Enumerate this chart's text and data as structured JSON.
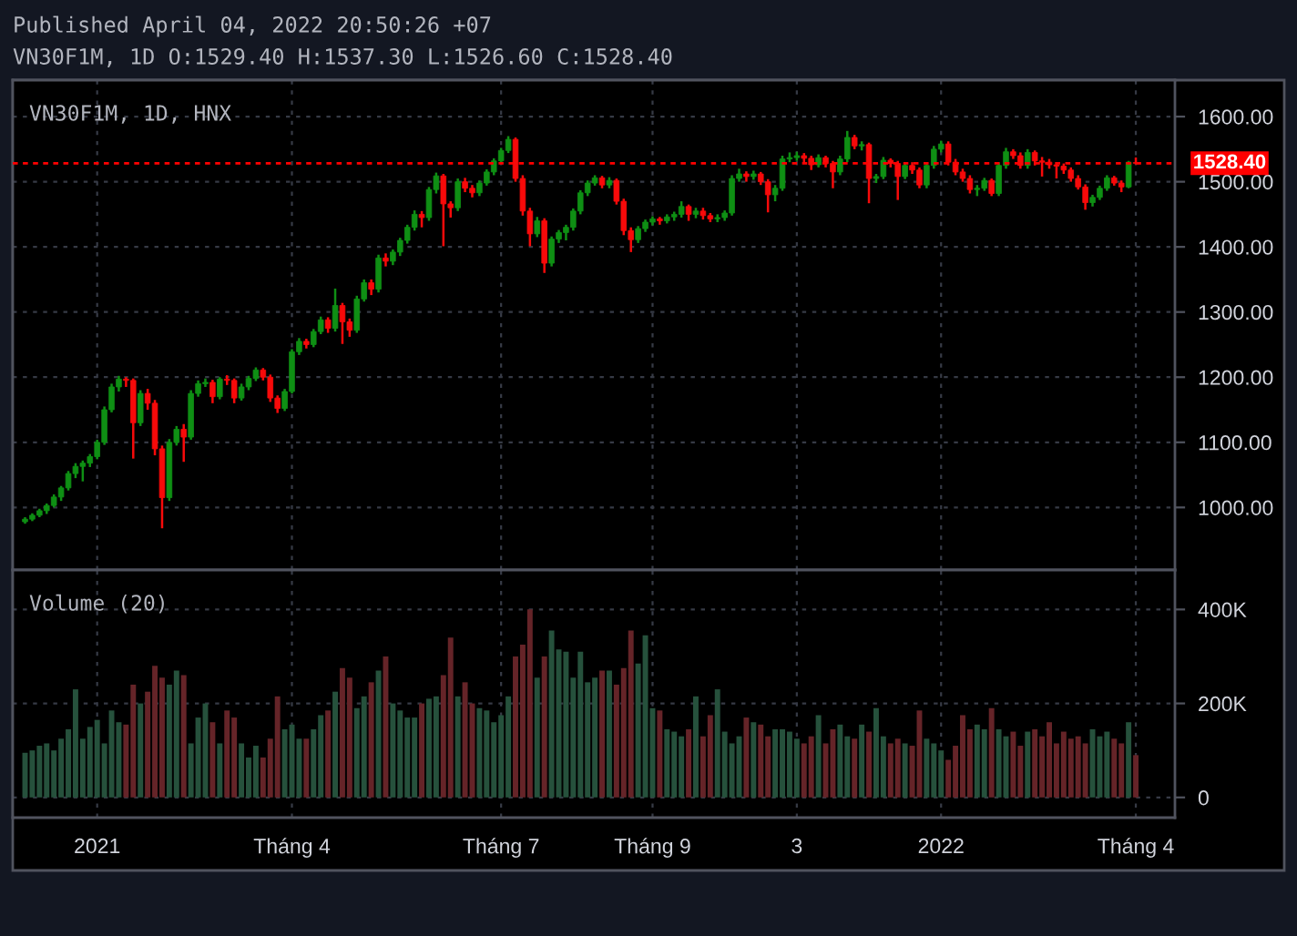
{
  "chart_data": [
    {
      "type": "candlestick",
      "title": "VN30F1M, 1D, HNX",
      "annotations": [
        "Published April 04, 2022 20:50:26 +07",
        "VN30F1M, 1D O:1529.40 H:1537.30 L:1526.60 C:1528.40"
      ],
      "categories": [
        null,
        null,
        null,
        null,
        null,
        null,
        null,
        null,
        null,
        null,
        null,
        null,
        null,
        null,
        null,
        null,
        null,
        null,
        null,
        null,
        null,
        null,
        null,
        null,
        null,
        null,
        null,
        null,
        null,
        null,
        null,
        null,
        null,
        null,
        null,
        null,
        null,
        null,
        null,
        null,
        null,
        null,
        null,
        null,
        null,
        null,
        null,
        null,
        null,
        null,
        null,
        null,
        null,
        null,
        null,
        null,
        null,
        null,
        null,
        null,
        null,
        null,
        null,
        null,
        null,
        null,
        null,
        null,
        null,
        null,
        null,
        null,
        null,
        null,
        null,
        null,
        null,
        null,
        null,
        null,
        null,
        null,
        null,
        null,
        null,
        null,
        null,
        null,
        null,
        null,
        null,
        null,
        null,
        null,
        null,
        null,
        null,
        null,
        null,
        null,
        null,
        null,
        null,
        null,
        null,
        null,
        null,
        null,
        null,
        null,
        null,
        null,
        null,
        null,
        null,
        null,
        null,
        null,
        null,
        null,
        null,
        null,
        null,
        null,
        null,
        null,
        null,
        null,
        null,
        null,
        null,
        null,
        null,
        null,
        null,
        null,
        null,
        null,
        null,
        null,
        null,
        null,
        null,
        null,
        null,
        null,
        null,
        null,
        null,
        null,
        null,
        null,
        null,
        null,
        null
      ],
      "ohlc": [
        [
          978,
          985,
          975,
          982
        ],
        [
          982,
          991,
          979,
          988
        ],
        [
          988,
          998,
          985,
          995
        ],
        [
          995,
          1006,
          990,
          1003
        ],
        [
          1003,
          1020,
          1000,
          1016
        ],
        [
          1016,
          1033,
          1010,
          1030
        ],
        [
          1030,
          1056,
          1026,
          1052
        ],
        [
          1052,
          1068,
          1045,
          1063
        ],
        [
          1063,
          1072,
          1040,
          1068
        ],
        [
          1068,
          1082,
          1062,
          1078
        ],
        [
          1078,
          1104,
          1074,
          1100
        ],
        [
          1100,
          1155,
          1096,
          1150
        ],
        [
          1150,
          1190,
          1146,
          1185
        ],
        [
          1185,
          1202,
          1178,
          1197
        ],
        [
          1197,
          1200,
          1185,
          1195
        ],
        [
          1195,
          1198,
          1075,
          1130
        ],
        [
          1130,
          1180,
          1125,
          1175
        ],
        [
          1175,
          1182,
          1150,
          1160
        ],
        [
          1160,
          1165,
          1080,
          1090
        ],
        [
          1090,
          1095,
          968,
          1015
        ],
        [
          1015,
          1105,
          1010,
          1100
        ],
        [
          1100,
          1125,
          1095,
          1120
        ],
        [
          1120,
          1128,
          1070,
          1108
        ],
        [
          1108,
          1180,
          1104,
          1175
        ],
        [
          1175,
          1195,
          1170,
          1190
        ],
        [
          1190,
          1198,
          1185,
          1192
        ],
        [
          1192,
          1196,
          1160,
          1170
        ],
        [
          1170,
          1200,
          1166,
          1197
        ],
        [
          1197,
          1203,
          1188,
          1195
        ],
        [
          1195,
          1198,
          1160,
          1168
        ],
        [
          1168,
          1190,
          1164,
          1185
        ],
        [
          1185,
          1202,
          1180,
          1198
        ],
        [
          1198,
          1215,
          1194,
          1211
        ],
        [
          1211,
          1214,
          1195,
          1200
        ],
        [
          1200,
          1204,
          1162,
          1168
        ],
        [
          1168,
          1172,
          1145,
          1152
        ],
        [
          1152,
          1182,
          1148,
          1178
        ],
        [
          1178,
          1243,
          1175,
          1239
        ],
        [
          1239,
          1260,
          1234,
          1255
        ],
        [
          1255,
          1259,
          1244,
          1250
        ],
        [
          1250,
          1274,
          1246,
          1270
        ],
        [
          1270,
          1293,
          1266,
          1288
        ],
        [
          1288,
          1292,
          1268,
          1275
        ],
        [
          1275,
          1336,
          1270,
          1310
        ],
        [
          1310,
          1314,
          1251,
          1285
        ],
        [
          1285,
          1290,
          1262,
          1272
        ],
        [
          1272,
          1325,
          1268,
          1320
        ],
        [
          1320,
          1350,
          1316,
          1345
        ],
        [
          1345,
          1350,
          1326,
          1335
        ],
        [
          1335,
          1388,
          1330,
          1383
        ],
        [
          1383,
          1390,
          1370,
          1378
        ],
        [
          1378,
          1396,
          1372,
          1392
        ],
        [
          1392,
          1414,
          1386,
          1410
        ],
        [
          1410,
          1434,
          1405,
          1430
        ],
        [
          1430,
          1456,
          1425,
          1450
        ],
        [
          1450,
          1455,
          1430,
          1445
        ],
        [
          1445,
          1492,
          1440,
          1488
        ],
        [
          1488,
          1514,
          1482,
          1509
        ],
        [
          1509,
          1512,
          1401,
          1466
        ],
        [
          1466,
          1470,
          1445,
          1460
        ],
        [
          1460,
          1505,
          1455,
          1500
        ],
        [
          1500,
          1506,
          1484,
          1490
        ],
        [
          1490,
          1495,
          1476,
          1483
        ],
        [
          1483,
          1502,
          1478,
          1498
        ],
        [
          1498,
          1519,
          1494,
          1515
        ],
        [
          1515,
          1536,
          1510,
          1532
        ],
        [
          1532,
          1552,
          1528,
          1548
        ],
        [
          1548,
          1570,
          1544,
          1565
        ],
        [
          1565,
          1568,
          1500,
          1505
        ],
        [
          1505,
          1510,
          1448,
          1455
        ],
        [
          1455,
          1460,
          1401,
          1420
        ],
        [
          1420,
          1446,
          1415,
          1440
        ],
        [
          1440,
          1444,
          1360,
          1375
        ],
        [
          1375,
          1416,
          1370,
          1412
        ],
        [
          1412,
          1426,
          1406,
          1422
        ],
        [
          1422,
          1434,
          1410,
          1430
        ],
        [
          1430,
          1459,
          1425,
          1455
        ],
        [
          1455,
          1487,
          1450,
          1483
        ],
        [
          1483,
          1502,
          1478,
          1498
        ],
        [
          1498,
          1510,
          1494,
          1506
        ],
        [
          1506,
          1509,
          1490,
          1495
        ],
        [
          1495,
          1507,
          1490,
          1502
        ],
        [
          1502,
          1505,
          1465,
          1470
        ],
        [
          1470,
          1474,
          1418,
          1425
        ],
        [
          1425,
          1430,
          1392,
          1411
        ],
        [
          1411,
          1432,
          1406,
          1428
        ],
        [
          1428,
          1442,
          1423,
          1438
        ],
        [
          1438,
          1447,
          1433,
          1443
        ],
        [
          1443,
          1446,
          1434,
          1440
        ],
        [
          1440,
          1450,
          1436,
          1446
        ],
        [
          1446,
          1454,
          1440,
          1450
        ],
        [
          1450,
          1470,
          1445,
          1462
        ],
        [
          1462,
          1465,
          1440,
          1450
        ],
        [
          1450,
          1460,
          1444,
          1455
        ],
        [
          1455,
          1460,
          1442,
          1448
        ],
        [
          1448,
          1452,
          1438,
          1443
        ],
        [
          1443,
          1450,
          1438,
          1445
        ],
        [
          1445,
          1456,
          1440,
          1452
        ],
        [
          1452,
          1510,
          1448,
          1505
        ],
        [
          1505,
          1520,
          1500,
          1512
        ],
        [
          1512,
          1516,
          1500,
          1508
        ],
        [
          1508,
          1517,
          1503,
          1512
        ],
        [
          1512,
          1515,
          1495,
          1500
        ],
        [
          1500,
          1504,
          1453,
          1480
        ],
        [
          1480,
          1495,
          1470,
          1490
        ],
        [
          1490,
          1540,
          1486,
          1535
        ],
        [
          1535,
          1545,
          1530,
          1537
        ],
        [
          1537,
          1546,
          1532,
          1540
        ],
        [
          1540,
          1544,
          1530,
          1536
        ],
        [
          1536,
          1540,
          1518,
          1526
        ],
        [
          1526,
          1542,
          1522,
          1537
        ],
        [
          1537,
          1540,
          1522,
          1528
        ],
        [
          1528,
          1532,
          1490,
          1515
        ],
        [
          1515,
          1540,
          1510,
          1535
        ],
        [
          1535,
          1578,
          1530,
          1568
        ],
        [
          1568,
          1572,
          1550,
          1555
        ],
        [
          1555,
          1562,
          1548,
          1557
        ],
        [
          1557,
          1560,
          1467,
          1505
        ],
        [
          1505,
          1512,
          1498,
          1508
        ],
        [
          1508,
          1538,
          1504,
          1533
        ],
        [
          1533,
          1536,
          1522,
          1528
        ],
        [
          1528,
          1532,
          1472,
          1508
        ],
        [
          1508,
          1530,
          1504,
          1525
        ],
        [
          1525,
          1530,
          1512,
          1518
        ],
        [
          1518,
          1522,
          1490,
          1495
        ],
        [
          1495,
          1530,
          1490,
          1525
        ],
        [
          1525,
          1555,
          1520,
          1550
        ],
        [
          1550,
          1563,
          1545,
          1558
        ],
        [
          1558,
          1562,
          1525,
          1530
        ],
        [
          1530,
          1535,
          1510,
          1515
        ],
        [
          1515,
          1520,
          1500,
          1505
        ],
        [
          1505,
          1510,
          1482,
          1488
        ],
        [
          1488,
          1495,
          1478,
          1490
        ],
        [
          1490,
          1506,
          1486,
          1502
        ],
        [
          1502,
          1505,
          1478,
          1482
        ],
        [
          1482,
          1530,
          1478,
          1525
        ],
        [
          1525,
          1552,
          1520,
          1546
        ],
        [
          1546,
          1550,
          1535,
          1540
        ],
        [
          1540,
          1545,
          1520,
          1525
        ],
        [
          1525,
          1550,
          1520,
          1545
        ],
        [
          1545,
          1548,
          1525,
          1532
        ],
        [
          1532,
          1538,
          1508,
          1530
        ],
        [
          1530,
          1535,
          1520,
          1526
        ],
        [
          1526,
          1530,
          1505,
          1524
        ],
        [
          1524,
          1528,
          1512,
          1518
        ],
        [
          1518,
          1522,
          1500,
          1505
        ],
        [
          1505,
          1510,
          1488,
          1492
        ],
        [
          1492,
          1496,
          1457,
          1468
        ],
        [
          1468,
          1480,
          1462,
          1476
        ],
        [
          1476,
          1494,
          1472,
          1490
        ],
        [
          1490,
          1510,
          1486,
          1506
        ],
        [
          1506,
          1509,
          1494,
          1498
        ],
        [
          1498,
          1502,
          1484,
          1492
        ],
        [
          1492,
          1532,
          1490,
          1530
        ],
        [
          1529.4,
          1537.3,
          1526.6,
          1528.4
        ]
      ],
      "colors": [
        "#0f8f14",
        "#0f8f14",
        "#0f8f14",
        "#0f8f14",
        "#0f8f14",
        "#0f8f14",
        "#0f8f14",
        "#0f8f14",
        "#0f8f14",
        "#0f8f14",
        "#0f8f14",
        "#0f8f14",
        "#0f8f14",
        "#0f8f14",
        "#f70a0a",
        "#f70a0a",
        "#0f8f14",
        "#f70a0a",
        "#f70a0a",
        "#f70a0a",
        "#0f8f14",
        "#0f8f14",
        "#f70a0a",
        "#0f8f14",
        "#0f8f14",
        "#0f8f14",
        "#f70a0a",
        "#0f8f14",
        "#f70a0a",
        "#f70a0a",
        "#0f8f14",
        "#0f8f14",
        "#0f8f14",
        "#f70a0a",
        "#f70a0a",
        "#f70a0a",
        "#0f8f14",
        "#0f8f14",
        "#0f8f14",
        "#f70a0a",
        "#0f8f14",
        "#0f8f14",
        "#f70a0a",
        "#0f8f14",
        "#f70a0a",
        "#f70a0a",
        "#0f8f14",
        "#0f8f14",
        "#f70a0a",
        "#0f8f14",
        "#f70a0a",
        "#0f8f14",
        "#0f8f14",
        "#0f8f14",
        "#0f8f14",
        "#f70a0a",
        "#0f8f14",
        "#0f8f14",
        "#f70a0a",
        "#f70a0a",
        "#0f8f14",
        "#f70a0a",
        "#f70a0a",
        "#0f8f14",
        "#0f8f14",
        "#0f8f14",
        "#0f8f14",
        "#0f8f14",
        "#f70a0a",
        "#f70a0a",
        "#f70a0a",
        "#0f8f14",
        "#f70a0a",
        "#0f8f14",
        "#0f8f14",
        "#0f8f14",
        "#0f8f14",
        "#0f8f14",
        "#0f8f14",
        "#0f8f14",
        "#f70a0a",
        "#0f8f14",
        "#f70a0a",
        "#f70a0a",
        "#f70a0a",
        "#0f8f14",
        "#0f8f14",
        "#0f8f14",
        "#f70a0a",
        "#0f8f14",
        "#0f8f14",
        "#0f8f14",
        "#f70a0a",
        "#0f8f14",
        "#f70a0a",
        "#f70a0a",
        "#0f8f14",
        "#0f8f14",
        "#0f8f14",
        "#0f8f14",
        "#f70a0a",
        "#0f8f14",
        "#f70a0a",
        "#f70a0a",
        "#0f8f14",
        "#0f8f14",
        "#0f8f14",
        "#0f8f14",
        "#f70a0a",
        "#f70a0a",
        "#0f8f14",
        "#f70a0a",
        "#f70a0a",
        "#0f8f14",
        "#0f8f14",
        "#f70a0a",
        "#0f8f14",
        "#f70a0a",
        "#0f8f14",
        "#0f8f14",
        "#f70a0a",
        "#f70a0a",
        "#0f8f14",
        "#f70a0a",
        "#f70a0a",
        "#0f8f14",
        "#0f8f14",
        "#0f8f14",
        "#f70a0a",
        "#f70a0a",
        "#f70a0a",
        "#f70a0a",
        "#0f8f14",
        "#0f8f14",
        "#f70a0a",
        "#0f8f14",
        "#0f8f14",
        "#f70a0a",
        "#f70a0a",
        "#0f8f14",
        "#f70a0a",
        "#f70a0a",
        "#f70a0a",
        "#f70a0a",
        "#f70a0a",
        "#f70a0a",
        "#f70a0a",
        "#f70a0a",
        "#0f8f14",
        "#0f8f14",
        "#0f8f14",
        "#f70a0a",
        "#f70a0a",
        "#0f8f14",
        "#f70a0a"
      ],
      "ylim": [
        904,
        1656
      ],
      "yticks": [
        {
          "value": 1000,
          "label": "1000.00"
        },
        {
          "value": 1100,
          "label": "1100.00"
        },
        {
          "value": 1200,
          "label": "1200.00"
        },
        {
          "value": 1300,
          "label": "1300.00"
        },
        {
          "value": 1400,
          "label": "1400.00"
        },
        {
          "value": 1500,
          "label": "1500.00"
        },
        {
          "value": 1600,
          "label": "1600.00"
        }
      ],
      "ref_lines": [
        {
          "axis": "y",
          "value": 1528.4,
          "label": "1528.40",
          "color": "#ff0000",
          "line_style": "dotted"
        }
      ],
      "grid": true,
      "tick_labels": "y"
    },
    {
      "type": "bar",
      "title": "Volume (20)",
      "categories": [
        null,
        null,
        null,
        null,
        null,
        null,
        null,
        null,
        null,
        null,
        "2021",
        null,
        null,
        null,
        null,
        null,
        null,
        null,
        null,
        null,
        null,
        null,
        null,
        null,
        null,
        null,
        null,
        null,
        null,
        null,
        null,
        null,
        null,
        null,
        null,
        null,
        null,
        "Tháng 4",
        null,
        null,
        null,
        null,
        null,
        null,
        null,
        null,
        null,
        null,
        null,
        null,
        null,
        null,
        null,
        null,
        null,
        null,
        null,
        null,
        null,
        null,
        null,
        null,
        null,
        null,
        null,
        null,
        "Tháng 7",
        null,
        null,
        null,
        null,
        null,
        null,
        null,
        null,
        null,
        null,
        null,
        null,
        null,
        null,
        null,
        null,
        null,
        null,
        null,
        null,
        "Tháng 9",
        null,
        null,
        null,
        null,
        null,
        null,
        null,
        null,
        null,
        null,
        null,
        null,
        null,
        null,
        null,
        null,
        null,
        null,
        null,
        "3",
        null,
        null,
        null,
        null,
        null,
        null,
        null,
        null,
        null,
        null,
        null,
        null,
        null,
        null,
        null,
        null,
        null,
        null,
        null,
        "2022",
        null,
        null,
        null,
        null,
        null,
        null,
        null,
        null,
        null,
        null,
        null,
        null,
        null,
        null,
        null,
        null,
        null,
        null,
        null,
        null,
        null,
        null,
        null,
        null,
        null,
        null,
        "Tháng 4"
      ],
      "values": [
        95000,
        100000,
        110000,
        115000,
        100000,
        125000,
        145000,
        230000,
        125000,
        150000,
        165000,
        115000,
        185000,
        160000,
        155000,
        240000,
        200000,
        225000,
        280000,
        255000,
        240000,
        270000,
        260000,
        115000,
        170000,
        200000,
        160000,
        115000,
        185000,
        170000,
        115000,
        85000,
        110000,
        85000,
        125000,
        215000,
        145000,
        155000,
        125000,
        125000,
        145000,
        175000,
        185000,
        225000,
        275000,
        255000,
        190000,
        215000,
        245000,
        270000,
        300000,
        200000,
        185000,
        170000,
        170000,
        200000,
        210000,
        215000,
        260000,
        340000,
        215000,
        245000,
        200000,
        190000,
        185000,
        160000,
        175000,
        215000,
        300000,
        325000,
        400000,
        255000,
        300000,
        355000,
        315000,
        310000,
        255000,
        310000,
        245000,
        255000,
        270000,
        270000,
        240000,
        275000,
        355000,
        285000,
        345000,
        190000,
        185000,
        145000,
        140000,
        130000,
        145000,
        215000,
        130000,
        175000,
        230000,
        140000,
        115000,
        130000,
        170000,
        160000,
        155000,
        130000,
        145000,
        145000,
        140000,
        125000,
        115000,
        130000,
        175000,
        115000,
        145000,
        155000,
        130000,
        125000,
        155000,
        140000,
        190000,
        130000,
        115000,
        125000,
        115000,
        110000,
        185000,
        125000,
        115000,
        100000,
        80000,
        110000,
        175000,
        145000,
        155000,
        145000,
        190000,
        145000,
        130000,
        140000,
        110000,
        140000,
        145000,
        130000,
        160000,
        115000,
        140000,
        125000,
        130000,
        115000,
        145000,
        130000,
        140000,
        125000,
        115000,
        160000,
        90000
      ],
      "colors": [
        "#26513c",
        "#26513c",
        "#26513c",
        "#26513c",
        "#26513c",
        "#26513c",
        "#26513c",
        "#26513c",
        "#26513c",
        "#26513c",
        "#26513c",
        "#26513c",
        "#26513c",
        "#26513c",
        "#652428",
        "#652428",
        "#26513c",
        "#652428",
        "#652428",
        "#652428",
        "#26513c",
        "#26513c",
        "#652428",
        "#26513c",
        "#26513c",
        "#26513c",
        "#652428",
        "#26513c",
        "#652428",
        "#652428",
        "#26513c",
        "#26513c",
        "#26513c",
        "#652428",
        "#652428",
        "#652428",
        "#26513c",
        "#26513c",
        "#26513c",
        "#652428",
        "#26513c",
        "#26513c",
        "#652428",
        "#26513c",
        "#652428",
        "#652428",
        "#26513c",
        "#26513c",
        "#652428",
        "#26513c",
        "#652428",
        "#26513c",
        "#26513c",
        "#26513c",
        "#26513c",
        "#652428",
        "#26513c",
        "#26513c",
        "#652428",
        "#652428",
        "#26513c",
        "#652428",
        "#652428",
        "#26513c",
        "#26513c",
        "#26513c",
        "#26513c",
        "#26513c",
        "#652428",
        "#652428",
        "#652428",
        "#26513c",
        "#652428",
        "#26513c",
        "#26513c",
        "#26513c",
        "#26513c",
        "#26513c",
        "#26513c",
        "#26513c",
        "#652428",
        "#26513c",
        "#652428",
        "#652428",
        "#652428",
        "#26513c",
        "#26513c",
        "#26513c",
        "#652428",
        "#26513c",
        "#26513c",
        "#26513c",
        "#652428",
        "#26513c",
        "#652428",
        "#652428",
        "#26513c",
        "#26513c",
        "#26513c",
        "#26513c",
        "#652428",
        "#26513c",
        "#652428",
        "#652428",
        "#26513c",
        "#26513c",
        "#26513c",
        "#26513c",
        "#652428",
        "#652428",
        "#26513c",
        "#652428",
        "#652428",
        "#26513c",
        "#26513c",
        "#652428",
        "#26513c",
        "#652428",
        "#26513c",
        "#26513c",
        "#652428",
        "#652428",
        "#26513c",
        "#652428",
        "#652428",
        "#26513c",
        "#26513c",
        "#26513c",
        "#652428",
        "#652428",
        "#652428",
        "#652428",
        "#26513c",
        "#26513c",
        "#652428",
        "#26513c",
        "#26513c",
        "#652428",
        "#652428",
        "#26513c",
        "#652428",
        "#652428",
        "#652428",
        "#652428",
        "#652428",
        "#652428",
        "#652428",
        "#652428",
        "#26513c",
        "#26513c",
        "#26513c",
        "#652428",
        "#652428",
        "#26513c",
        "#652428"
      ],
      "ylim": [
        -43000,
        484000
      ],
      "yticks": [
        0,
        {
          "value": 200000,
          "label": "200K"
        },
        {
          "value": 400000,
          "label": "400K"
        }
      ],
      "grid": true
    }
  ]
}
